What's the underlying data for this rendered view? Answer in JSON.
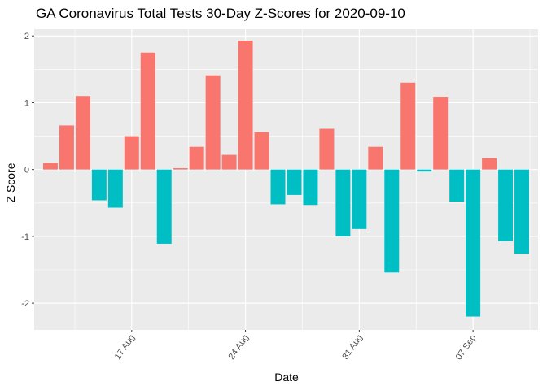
{
  "chart_data": {
    "type": "bar",
    "title": "GA Coronavirus Total Tests 30-Day Z-Scores for 2020-09-10",
    "xlabel": "Date",
    "ylabel": "Z Score",
    "x": [
      "2020-08-12",
      "2020-08-13",
      "2020-08-14",
      "2020-08-15",
      "2020-08-16",
      "2020-08-17",
      "2020-08-18",
      "2020-08-19",
      "2020-08-20",
      "2020-08-21",
      "2020-08-22",
      "2020-08-23",
      "2020-08-24",
      "2020-08-25",
      "2020-08-26",
      "2020-08-27",
      "2020-08-28",
      "2020-08-29",
      "2020-08-30",
      "2020-08-31",
      "2020-09-01",
      "2020-09-02",
      "2020-09-03",
      "2020-09-04",
      "2020-09-05",
      "2020-09-06",
      "2020-09-07",
      "2020-09-08",
      "2020-09-09",
      "2020-09-10"
    ],
    "values": [
      0.1,
      0.66,
      1.1,
      -0.46,
      -0.57,
      0.5,
      1.75,
      -1.11,
      0.02,
      0.34,
      1.41,
      0.22,
      1.93,
      0.56,
      -0.52,
      -0.38,
      -0.53,
      0.61,
      -1.0,
      -0.89,
      0.34,
      -1.54,
      1.3,
      -0.03,
      1.09,
      -0.48,
      -2.2,
      0.17,
      -1.07,
      -1.26
    ],
    "xlim": [
      "2020-08-11",
      "2020-09-11"
    ],
    "ylim": [
      -2.4,
      2.1
    ],
    "yticks": [
      2,
      1,
      0,
      -1,
      -2
    ],
    "ytick_labels": [
      "2",
      "1",
      "0",
      "-1",
      "-2"
    ],
    "xticks": [
      "2020-08-17",
      "2020-08-24",
      "2020-08-31",
      "2020-09-07"
    ],
    "xtick_labels": [
      "17 Aug",
      "24 Aug",
      "31 Aug",
      "07 Sep"
    ],
    "xminor": [
      "2020-08-13T12:00",
      "2020-08-20T12:00",
      "2020-08-27T12:00",
      "2020-09-03T12:00",
      "2020-09-10T12:00"
    ],
    "yminor": [
      1.5,
      0.5,
      -0.5,
      -1.5
    ],
    "grid": true,
    "legend": "none",
    "colors": {
      "positive": "#F8766D",
      "negative": "#00BFC4",
      "panel": "#EBEBEB",
      "grid": "#FFFFFF"
    }
  }
}
